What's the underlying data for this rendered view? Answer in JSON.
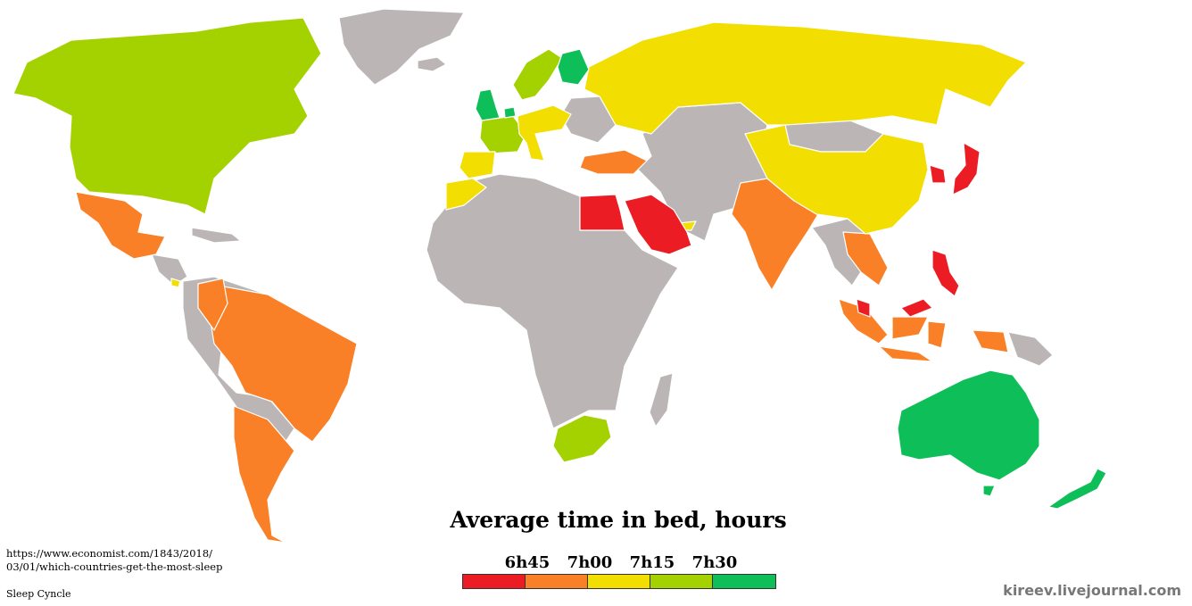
{
  "title": "Average time in bed, hours",
  "legend": {
    "ticks": [
      "6h45",
      "7h00",
      "7h15",
      "7h30"
    ],
    "colors": [
      "#ec1c24",
      "#f98027",
      "#f2de00",
      "#a4d200",
      "#0dbe59"
    ]
  },
  "source": {
    "url_line1": "https://www.economist.com/1843/2018/",
    "url_line2": "03/01/which-countries-get-the-most-sleep",
    "provider": "Sleep Cyncle"
  },
  "credit": "kireev.livejournal.com",
  "colors": {
    "no_data": "#bbb5b6",
    "red": "#ec1c24",
    "orange": "#f98027",
    "yellow": "#f2de00",
    "light_green": "#a4d200",
    "green": "#0dbe59"
  },
  "map_regions": [
    {
      "name": "canada-usa",
      "category": "light_green"
    },
    {
      "name": "mexico",
      "category": "orange"
    },
    {
      "name": "brazil",
      "category": "orange"
    },
    {
      "name": "argentina-chile",
      "category": "orange"
    },
    {
      "name": "uk",
      "category": "green"
    },
    {
      "name": "finland",
      "category": "green"
    },
    {
      "name": "russia-kazakhstan",
      "category": "yellow"
    },
    {
      "name": "china",
      "category": "yellow"
    },
    {
      "name": "turkey",
      "category": "orange"
    },
    {
      "name": "egypt",
      "category": "red"
    },
    {
      "name": "saudi-arabia",
      "category": "red"
    },
    {
      "name": "india",
      "category": "orange"
    },
    {
      "name": "japan",
      "category": "red"
    },
    {
      "name": "south-korea",
      "category": "red"
    },
    {
      "name": "philippines",
      "category": "red"
    },
    {
      "name": "malaysia",
      "category": "red"
    },
    {
      "name": "indonesia",
      "category": "orange"
    },
    {
      "name": "australia",
      "category": "green"
    },
    {
      "name": "new-zealand",
      "category": "green"
    },
    {
      "name": "south-africa",
      "category": "light_green"
    }
  ]
}
